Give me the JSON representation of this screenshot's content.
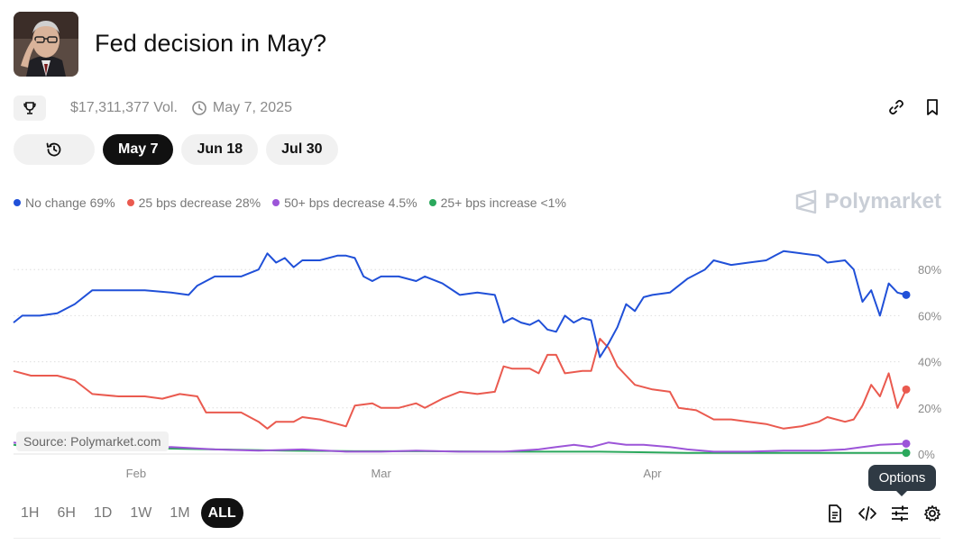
{
  "header": {
    "title": "Fed decision in May?",
    "volume": "$17,311,377 Vol.",
    "date": "May 7, 2025",
    "brand": "Polymarket"
  },
  "tabs": [
    {
      "label": "May 7",
      "active": true
    },
    {
      "label": "Jun 18",
      "active": false
    },
    {
      "label": "Jul 30",
      "active": false
    }
  ],
  "legend": [
    {
      "label": "No change 69%",
      "color": "#2050d8"
    },
    {
      "label": "25 bps decrease 28%",
      "color": "#ea5a4f"
    },
    {
      "label": "50+ bps decrease 4.5%",
      "color": "#9c55d8"
    },
    {
      "label": "25+ bps increase <1%",
      "color": "#2ba85c"
    }
  ],
  "source_label": "Source: Polymarket.com",
  "ranges": [
    {
      "label": "1H",
      "active": false
    },
    {
      "label": "6H",
      "active": false
    },
    {
      "label": "1D",
      "active": false
    },
    {
      "label": "1W",
      "active": false
    },
    {
      "label": "1M",
      "active": false
    },
    {
      "label": "ALL",
      "active": true
    }
  ],
  "tooltip": "Options",
  "icons": {
    "trophy": "trophy-icon",
    "clock": "clock-icon",
    "link": "link-icon",
    "bookmark": "bookmark-icon",
    "history": "history-icon",
    "document": "document-icon",
    "code": "code-icon",
    "sliders": "sliders-icon",
    "settings": "gear-icon"
  },
  "chart_data": {
    "type": "line",
    "x_start": "2025-01-18",
    "x_end": "2025-04-30",
    "x_ticks": [
      {
        "label": "Feb",
        "date": "2025-02-01"
      },
      {
        "label": "Mar",
        "date": "2025-03-01"
      },
      {
        "label": "Apr",
        "date": "2025-04-01"
      }
    ],
    "y_ticks": [
      0,
      20,
      40,
      60,
      80
    ],
    "y_tick_labels": [
      "0%",
      "20%",
      "40%",
      "60%",
      "80%"
    ],
    "ylim": [
      0,
      92
    ],
    "grid": "horizontal dotted",
    "legend_position": "top-left",
    "series": [
      {
        "name": "No change",
        "color": "#2050d8",
        "points": [
          [
            "2025-01-18",
            57
          ],
          [
            "2025-01-19",
            60
          ],
          [
            "2025-01-21",
            60
          ],
          [
            "2025-01-23",
            61
          ],
          [
            "2025-01-25",
            65
          ],
          [
            "2025-01-27",
            71
          ],
          [
            "2025-01-30",
            71
          ],
          [
            "2025-02-02",
            71
          ],
          [
            "2025-02-05",
            70
          ],
          [
            "2025-02-07",
            69
          ],
          [
            "2025-02-08",
            73
          ],
          [
            "2025-02-10",
            77
          ],
          [
            "2025-02-13",
            77
          ],
          [
            "2025-02-15",
            80
          ],
          [
            "2025-02-16",
            87
          ],
          [
            "2025-02-17",
            83
          ],
          [
            "2025-02-18",
            85
          ],
          [
            "2025-02-19",
            81
          ],
          [
            "2025-02-20",
            84
          ],
          [
            "2025-02-22",
            84
          ],
          [
            "2025-02-24",
            86
          ],
          [
            "2025-02-25",
            86
          ],
          [
            "2025-02-26",
            85
          ],
          [
            "2025-02-27",
            77
          ],
          [
            "2025-02-28",
            75
          ],
          [
            "2025-03-01",
            77
          ],
          [
            "2025-03-03",
            77
          ],
          [
            "2025-03-05",
            75
          ],
          [
            "2025-03-06",
            77
          ],
          [
            "2025-03-08",
            74
          ],
          [
            "2025-03-10",
            69
          ],
          [
            "2025-03-12",
            70
          ],
          [
            "2025-03-14",
            69
          ],
          [
            "2025-03-15",
            57
          ],
          [
            "2025-03-16",
            59
          ],
          [
            "2025-03-17",
            57
          ],
          [
            "2025-03-18",
            56
          ],
          [
            "2025-03-19",
            58
          ],
          [
            "2025-03-20",
            54
          ],
          [
            "2025-03-21",
            53
          ],
          [
            "2025-03-22",
            60
          ],
          [
            "2025-03-23",
            57
          ],
          [
            "2025-03-24",
            59
          ],
          [
            "2025-03-25",
            58
          ],
          [
            "2025-03-26",
            42
          ],
          [
            "2025-03-27",
            48
          ],
          [
            "2025-03-28",
            55
          ],
          [
            "2025-03-29",
            65
          ],
          [
            "2025-03-30",
            62
          ],
          [
            "2025-03-31",
            68
          ],
          [
            "2025-04-01",
            69
          ],
          [
            "2025-04-03",
            70
          ],
          [
            "2025-04-05",
            76
          ],
          [
            "2025-04-07",
            80
          ],
          [
            "2025-04-08",
            84
          ],
          [
            "2025-04-10",
            82
          ],
          [
            "2025-04-12",
            83
          ],
          [
            "2025-04-14",
            84
          ],
          [
            "2025-04-15",
            86
          ],
          [
            "2025-04-16",
            88
          ],
          [
            "2025-04-18",
            87
          ],
          [
            "2025-04-20",
            86
          ],
          [
            "2025-04-21",
            83
          ],
          [
            "2025-04-23",
            84
          ],
          [
            "2025-04-24",
            80
          ],
          [
            "2025-04-25",
            66
          ],
          [
            "2025-04-26",
            71
          ],
          [
            "2025-04-27",
            60
          ],
          [
            "2025-04-28",
            74
          ],
          [
            "2025-04-29",
            70
          ],
          [
            "2025-04-30",
            69
          ]
        ]
      },
      {
        "name": "25 bps decrease",
        "color": "#ea5a4f",
        "points": [
          [
            "2025-01-18",
            36
          ],
          [
            "2025-01-20",
            34
          ],
          [
            "2025-01-23",
            34
          ],
          [
            "2025-01-25",
            32
          ],
          [
            "2025-01-27",
            26
          ],
          [
            "2025-01-30",
            25
          ],
          [
            "2025-02-02",
            25
          ],
          [
            "2025-02-04",
            24
          ],
          [
            "2025-02-06",
            26
          ],
          [
            "2025-02-08",
            25
          ],
          [
            "2025-02-09",
            18
          ],
          [
            "2025-02-11",
            18
          ],
          [
            "2025-02-13",
            18
          ],
          [
            "2025-02-15",
            14
          ],
          [
            "2025-02-16",
            11
          ],
          [
            "2025-02-17",
            14
          ],
          [
            "2025-02-19",
            14
          ],
          [
            "2025-02-20",
            16
          ],
          [
            "2025-02-22",
            15
          ],
          [
            "2025-02-24",
            13
          ],
          [
            "2025-02-25",
            12
          ],
          [
            "2025-02-26",
            21
          ],
          [
            "2025-02-28",
            22
          ],
          [
            "2025-03-01",
            20
          ],
          [
            "2025-03-03",
            20
          ],
          [
            "2025-03-05",
            22
          ],
          [
            "2025-03-06",
            20
          ],
          [
            "2025-03-08",
            24
          ],
          [
            "2025-03-10",
            27
          ],
          [
            "2025-03-12",
            26
          ],
          [
            "2025-03-14",
            27
          ],
          [
            "2025-03-15",
            38
          ],
          [
            "2025-03-16",
            37
          ],
          [
            "2025-03-18",
            37
          ],
          [
            "2025-03-19",
            35
          ],
          [
            "2025-03-20",
            43
          ],
          [
            "2025-03-21",
            43
          ],
          [
            "2025-03-22",
            35
          ],
          [
            "2025-03-24",
            36
          ],
          [
            "2025-03-25",
            36
          ],
          [
            "2025-03-26",
            50
          ],
          [
            "2025-03-27",
            46
          ],
          [
            "2025-03-28",
            38
          ],
          [
            "2025-03-29",
            34
          ],
          [
            "2025-03-30",
            30
          ],
          [
            "2025-04-01",
            28
          ],
          [
            "2025-04-03",
            27
          ],
          [
            "2025-04-04",
            20
          ],
          [
            "2025-04-06",
            19
          ],
          [
            "2025-04-08",
            15
          ],
          [
            "2025-04-10",
            15
          ],
          [
            "2025-04-12",
            14
          ],
          [
            "2025-04-14",
            13
          ],
          [
            "2025-04-15",
            12
          ],
          [
            "2025-04-16",
            11
          ],
          [
            "2025-04-18",
            12
          ],
          [
            "2025-04-20",
            14
          ],
          [
            "2025-04-21",
            16
          ],
          [
            "2025-04-23",
            14
          ],
          [
            "2025-04-24",
            15
          ],
          [
            "2025-04-25",
            21
          ],
          [
            "2025-04-26",
            30
          ],
          [
            "2025-04-27",
            25
          ],
          [
            "2025-04-28",
            35
          ],
          [
            "2025-04-29",
            20
          ],
          [
            "2025-04-30",
            28
          ]
        ]
      },
      {
        "name": "50+ bps decrease",
        "color": "#9c55d8",
        "points": [
          [
            "2025-01-18",
            5
          ],
          [
            "2025-01-22",
            3
          ],
          [
            "2025-01-26",
            2
          ],
          [
            "2025-01-30",
            2
          ],
          [
            "2025-02-05",
            3
          ],
          [
            "2025-02-10",
            2
          ],
          [
            "2025-02-15",
            1.5
          ],
          [
            "2025-02-20",
            2
          ],
          [
            "2025-02-25",
            1
          ],
          [
            "2025-03-01",
            1
          ],
          [
            "2025-03-05",
            1.5
          ],
          [
            "2025-03-10",
            1
          ],
          [
            "2025-03-15",
            1
          ],
          [
            "2025-03-19",
            2
          ],
          [
            "2025-03-21",
            3
          ],
          [
            "2025-03-23",
            4
          ],
          [
            "2025-03-25",
            3
          ],
          [
            "2025-03-27",
            5
          ],
          [
            "2025-03-29",
            4
          ],
          [
            "2025-03-31",
            4
          ],
          [
            "2025-04-03",
            3
          ],
          [
            "2025-04-05",
            2
          ],
          [
            "2025-04-08",
            1
          ],
          [
            "2025-04-12",
            1
          ],
          [
            "2025-04-16",
            1.5
          ],
          [
            "2025-04-20",
            1.5
          ],
          [
            "2025-04-23",
            2
          ],
          [
            "2025-04-25",
            3
          ],
          [
            "2025-04-27",
            4
          ],
          [
            "2025-04-30",
            4.5
          ]
        ]
      },
      {
        "name": "25+ bps increase",
        "color": "#2ba85c",
        "points": [
          [
            "2025-01-18",
            4
          ],
          [
            "2025-01-22",
            2
          ],
          [
            "2025-01-27",
            2.5
          ],
          [
            "2025-02-03",
            2.5
          ],
          [
            "2025-02-10",
            2
          ],
          [
            "2025-02-18",
            1.5
          ],
          [
            "2025-02-26",
            1.2
          ],
          [
            "2025-03-06",
            1.2
          ],
          [
            "2025-03-16",
            1
          ],
          [
            "2025-03-26",
            1
          ],
          [
            "2025-04-05",
            0.5
          ],
          [
            "2025-04-15",
            0.5
          ],
          [
            "2025-04-25",
            0.5
          ],
          [
            "2025-04-30",
            0.5
          ]
        ]
      }
    ]
  }
}
